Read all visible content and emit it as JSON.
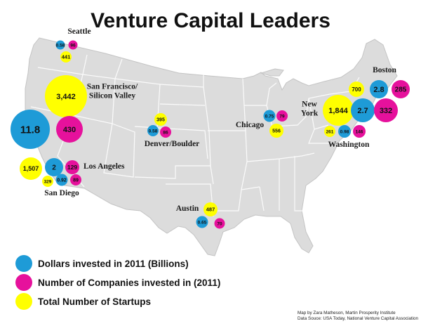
{
  "title": "Venture Capital Leaders",
  "colors": {
    "dollars": "#1e9bd7",
    "companies": "#e6119c",
    "startups": "#ffff00",
    "land": "#dcdcdc",
    "border": "#ffffff"
  },
  "cities": [
    {
      "name": "Seattle",
      "dollars": "0.58",
      "companies": "96",
      "startups": "441"
    },
    {
      "name": "San Francisco/\nSilicon Valley",
      "dollars": "11.8",
      "companies": "430",
      "startups": "3,442"
    },
    {
      "name": "Los Angeles",
      "dollars": "2",
      "companies": "129",
      "startups": "1,507"
    },
    {
      "name": "San Diego",
      "dollars": "0.92",
      "companies": "89",
      "startups": "329"
    },
    {
      "name": "Denver/Boulder",
      "dollars": "0.58",
      "companies": "86",
      "startups": "395"
    },
    {
      "name": "Austin",
      "dollars": "0.65",
      "companies": "70",
      "startups": "487"
    },
    {
      "name": "Chicago",
      "dollars": "0.75",
      "companies": "79",
      "startups": "556"
    },
    {
      "name": "Boston",
      "dollars": "2.8",
      "companies": "285",
      "startups": "700"
    },
    {
      "name": "New\nYork",
      "dollars": "2.7",
      "companies": "332",
      "startups": "1,844"
    },
    {
      "name": "Washington",
      "dollars": "0.98",
      "companies": "146",
      "startups": "261"
    }
  ],
  "legend": [
    {
      "key": "dollars",
      "label": "Dollars invested in 2011 (Billions)"
    },
    {
      "key": "companies",
      "label": "Number of Companies invested in (2011)"
    },
    {
      "key": "startups",
      "label": "Total Number of Startups"
    }
  ],
  "credits": [
    "Map by Zara Matheson, Martin Prosperity Institute",
    "Data Souce: USA Today, National Venture Capital Association"
  ]
}
